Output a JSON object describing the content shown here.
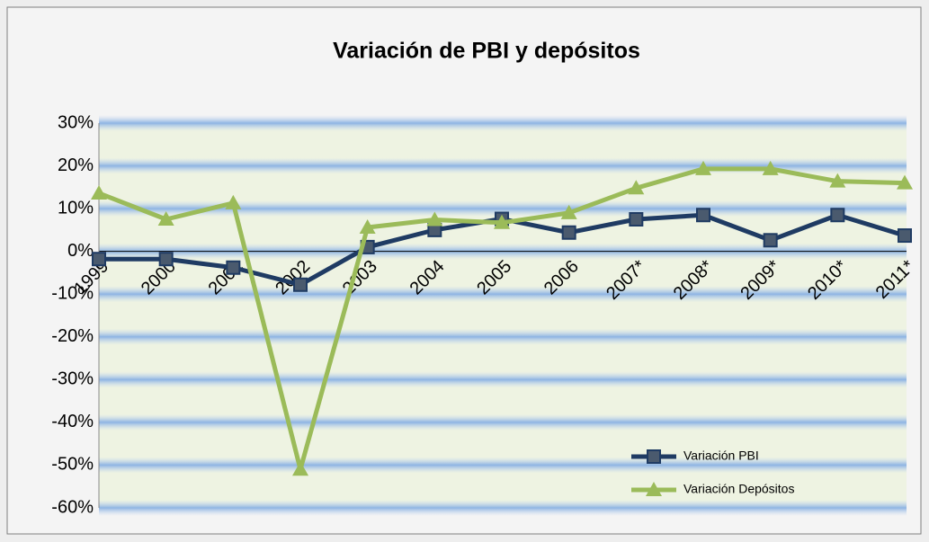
{
  "chart_data": {
    "type": "line",
    "title": "Variación de PBI y depósitos",
    "categories": [
      "1999",
      "2000",
      "2001",
      "2002",
      "2003",
      "2004",
      "2005",
      "2006",
      "2007*",
      "2008*",
      "2009*",
      "2010*",
      "2011*"
    ],
    "series": [
      {
        "name": "Variación PBI",
        "color": "#1f3b63",
        "marker": "square",
        "values": [
          -1.8,
          -1.8,
          -3.8,
          -7.8,
          1.0,
          5.0,
          7.6,
          4.4,
          7.5,
          8.5,
          2.6,
          8.5,
          3.7
        ]
      },
      {
        "name": "Variación Depósitos",
        "color": "#9bbb59",
        "marker": "triangle",
        "values": [
          13.6,
          7.5,
          11.3,
          -51,
          5.6,
          7.4,
          6.7,
          9.0,
          14.8,
          19.3,
          19.3,
          16.4,
          16.0
        ]
      }
    ],
    "ylim": [
      -60,
      30
    ],
    "yticks": [
      {
        "value": -60,
        "label": "-60%"
      },
      {
        "value": -50,
        "label": "-50%"
      },
      {
        "value": -40,
        "label": "-40%"
      },
      {
        "value": -30,
        "label": "-30%"
      },
      {
        "value": -20,
        "label": "-20%"
      },
      {
        "value": -10,
        "label": "-10%"
      },
      {
        "value": 0,
        "label": "0%"
      },
      {
        "value": 10,
        "label": "10%"
      },
      {
        "value": 20,
        "label": "20%"
      },
      {
        "value": 30,
        "label": "30%"
      }
    ],
    "grid": true,
    "legend": "bottom-right"
  }
}
